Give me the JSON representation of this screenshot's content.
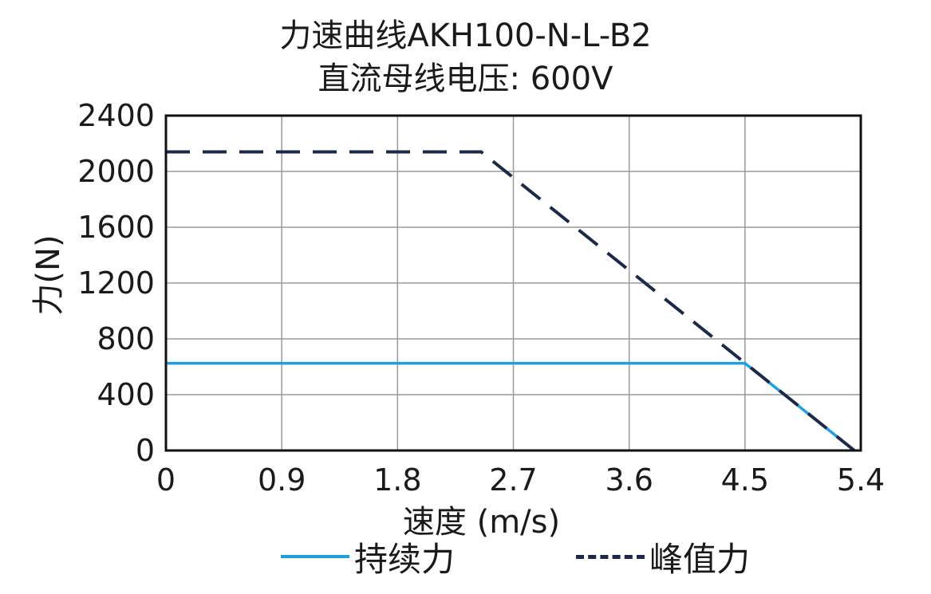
{
  "chart_data": {
    "type": "line",
    "title": "力速曲线AKH100-N-L-B2",
    "subtitle": "直流母线电压: 600V",
    "xlabel": "速度 (m/s)",
    "ylabel": "力(N)",
    "xlim": [
      0,
      5.4
    ],
    "ylim": [
      0,
      2400
    ],
    "xticks": [
      "0",
      "0.9",
      "1.8",
      "2.7",
      "3.6",
      "4.5",
      "5.4"
    ],
    "yticks": [
      "0",
      "400",
      "800",
      "1200",
      "1600",
      "2000",
      "2400"
    ],
    "grid": true,
    "legend_position": "bottom",
    "series": [
      {
        "name": "持续力",
        "color": "#1ea0e0",
        "style": "solid",
        "x": [
          0,
          4.5,
          5.35
        ],
        "y": [
          625,
          625,
          0
        ]
      },
      {
        "name": "峰值力",
        "color": "#1b2a4a",
        "style": "dashed",
        "x": [
          0,
          2.45,
          5.35
        ],
        "y": [
          2140,
          2140,
          0
        ]
      }
    ]
  }
}
